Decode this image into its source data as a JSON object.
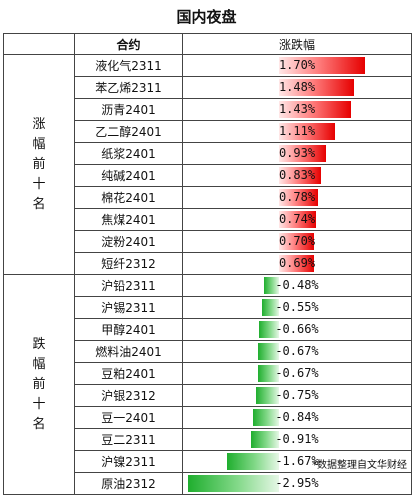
{
  "title": "国内夜盘",
  "headers": {
    "contract": "合约",
    "change": "涨跌幅"
  },
  "groups": [
    {
      "label": "涨幅前十名",
      "direction": "up",
      "rows": [
        {
          "name": "液化气2311",
          "change": "1.70%",
          "pct": 1.7
        },
        {
          "name": "苯乙烯2311",
          "change": "1.48%",
          "pct": 1.48
        },
        {
          "name": "沥青2401",
          "change": "1.43%",
          "pct": 1.43
        },
        {
          "name": "乙二醇2401",
          "change": "1.11%",
          "pct": 1.11
        },
        {
          "name": "纸浆2401",
          "change": "0.93%",
          "pct": 0.93
        },
        {
          "name": "纯碱2401",
          "change": "0.83%",
          "pct": 0.83
        },
        {
          "name": "棉花2401",
          "change": "0.78%",
          "pct": 0.78
        },
        {
          "name": "焦煤2401",
          "change": "0.74%",
          "pct": 0.74
        },
        {
          "name": "淀粉2401",
          "change": "0.70%",
          "pct": 0.7
        },
        {
          "name": "短纤2312",
          "change": "0.69%",
          "pct": 0.69
        }
      ]
    },
    {
      "label": "跌幅前十名",
      "direction": "down",
      "rows": [
        {
          "name": "沪铅2311",
          "change": "-0.48%",
          "pct": -0.48
        },
        {
          "name": "沪锡2311",
          "change": "-0.55%",
          "pct": -0.55
        },
        {
          "name": "甲醇2401",
          "change": "-0.66%",
          "pct": -0.66
        },
        {
          "name": "燃料油2401",
          "change": "-0.67%",
          "pct": -0.67
        },
        {
          "name": "豆粕2401",
          "change": "-0.67%",
          "pct": -0.67
        },
        {
          "name": "沪银2312",
          "change": "-0.75%",
          "pct": -0.75
        },
        {
          "name": "豆一2401",
          "change": "-0.84%",
          "pct": -0.84
        },
        {
          "name": "豆二2311",
          "change": "-0.91%",
          "pct": -0.91
        },
        {
          "name": "沪镍2311",
          "change": "-1.67%",
          "pct": -1.67
        },
        {
          "name": "原油2312",
          "change": "-2.95%",
          "pct": -2.95
        }
      ]
    }
  ],
  "source": "*数据整理自文华财经",
  "colors": {
    "up": "#e60000",
    "down": "#1fae2e"
  }
}
